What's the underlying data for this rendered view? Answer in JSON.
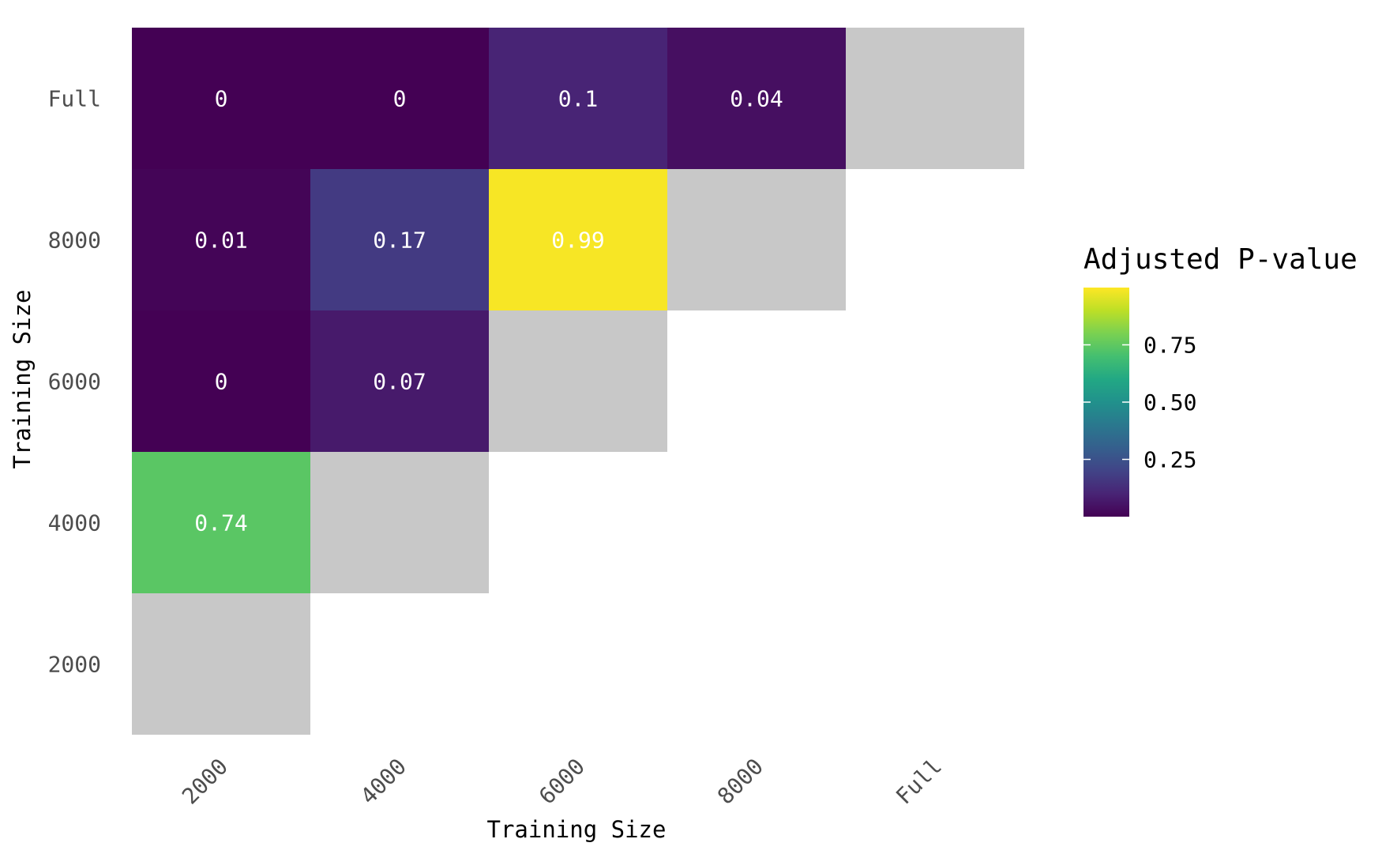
{
  "chart_data": {
    "type": "heatmap",
    "xlabel": "Training Size",
    "ylabel": "Training Size",
    "x_categories": [
      "2000",
      "4000",
      "6000",
      "8000",
      "Full"
    ],
    "y_categories": [
      "2000",
      "4000",
      "6000",
      "8000",
      "Full"
    ],
    "cells": [
      {
        "x": "2000",
        "y": "Full",
        "value": 0,
        "label": "0"
      },
      {
        "x": "4000",
        "y": "Full",
        "value": 0,
        "label": "0"
      },
      {
        "x": "6000",
        "y": "Full",
        "value": 0.1,
        "label": "0.1"
      },
      {
        "x": "8000",
        "y": "Full",
        "value": 0.04,
        "label": "0.04"
      },
      {
        "x": "Full",
        "y": "Full",
        "value": null,
        "label": ""
      },
      {
        "x": "2000",
        "y": "8000",
        "value": 0.01,
        "label": "0.01"
      },
      {
        "x": "4000",
        "y": "8000",
        "value": 0.17,
        "label": "0.17"
      },
      {
        "x": "6000",
        "y": "8000",
        "value": 0.99,
        "label": "0.99"
      },
      {
        "x": "8000",
        "y": "8000",
        "value": null,
        "label": ""
      },
      {
        "x": "2000",
        "y": "6000",
        "value": 0,
        "label": "0"
      },
      {
        "x": "4000",
        "y": "6000",
        "value": 0.07,
        "label": "0.07"
      },
      {
        "x": "6000",
        "y": "6000",
        "value": null,
        "label": ""
      },
      {
        "x": "2000",
        "y": "4000",
        "value": 0.74,
        "label": "0.74"
      },
      {
        "x": "4000",
        "y": "4000",
        "value": null,
        "label": ""
      },
      {
        "x": "2000",
        "y": "2000",
        "value": null,
        "label": ""
      }
    ],
    "legend": {
      "title": "Adjusted P-value",
      "placement": "right",
      "range": [
        0,
        1
      ],
      "ticks": [
        {
          "value": 0.25,
          "label": "0.25"
        },
        {
          "value": 0.5,
          "label": "0.50"
        },
        {
          "value": 0.75,
          "label": "0.75"
        }
      ],
      "colormap": "viridis"
    },
    "na_color": "#c8c8c8",
    "grid": false
  }
}
